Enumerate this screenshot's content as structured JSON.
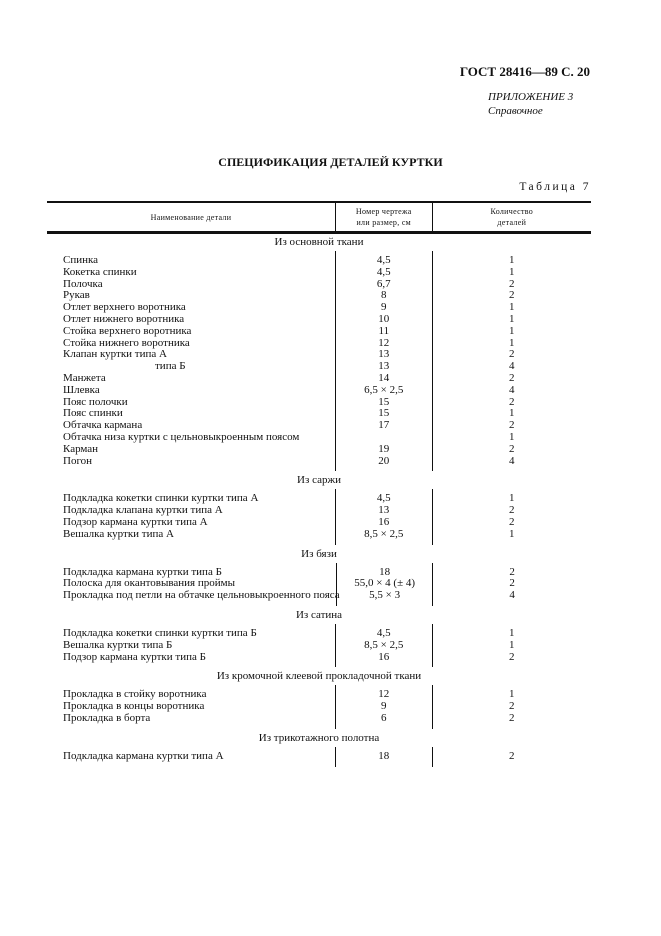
{
  "header": {
    "standard": "ГОСТ 28416—89 С. 20",
    "appendix": "ПРИЛОЖЕНИЕ 3",
    "appendix_note": "Справочное"
  },
  "title": "СПЕЦИФИКАЦИЯ ДЕТАЛЕЙ КУРТКИ",
  "table_label": "Таблица 7",
  "columns": {
    "name": "Наименование детали",
    "number_line1": "Номер чертежа",
    "number_line2": "или размер, см",
    "qty_line1": "Количество",
    "qty_line2": "деталей"
  },
  "sections": [
    {
      "heading": "Из основной ткани",
      "rows": [
        {
          "name": "Спинка",
          "number": "4,5",
          "qty": "1"
        },
        {
          "name": "Кокетка спинки",
          "number": "4,5",
          "qty": "1"
        },
        {
          "name": "Полочка",
          "number": "6,7",
          "qty": "2"
        },
        {
          "name": "Рукав",
          "number": "8",
          "qty": "2"
        },
        {
          "name": "Отлет верхнего воротника",
          "number": "9",
          "qty": "1"
        },
        {
          "name": "Отлет нижнего воротника",
          "number": "10",
          "qty": "1"
        },
        {
          "name": "Стойка верхнего воротника",
          "number": "11",
          "qty": "1"
        },
        {
          "name": "Стойка нижнего воротника",
          "number": "12",
          "qty": "1"
        },
        {
          "name": "Клапан куртки типа А",
          "number": "13",
          "qty": "2"
        },
        {
          "name": "типа Б",
          "number": "13",
          "qty": "4",
          "indent": true
        },
        {
          "name": "Манжета",
          "number": "14",
          "qty": "2"
        },
        {
          "name": "Шлевка",
          "number": "6,5 × 2,5",
          "qty": "4"
        },
        {
          "name": "Пояс полочки",
          "number": "15",
          "qty": "2"
        },
        {
          "name": "Пояс спинки",
          "number": "15",
          "qty": "1"
        },
        {
          "name": "Обтачка кармана",
          "number": "17",
          "qty": "2"
        },
        {
          "name": "Обтачка низа куртки с цельновыкроенным поясом",
          "number": "",
          "qty": "1"
        },
        {
          "name": "Карман",
          "number": "19",
          "qty": "2"
        },
        {
          "name": "Погон",
          "number": "20",
          "qty": "4"
        }
      ]
    },
    {
      "heading": "Из саржи",
      "rows": [
        {
          "name": "Подкладка кокетки спинки куртки типа А",
          "number": "4,5",
          "qty": "1"
        },
        {
          "name": "Подкладка клапана куртки типа А",
          "number": "13",
          "qty": "2"
        },
        {
          "name": "Подзор кармана куртки типа А",
          "number": "16",
          "qty": "2"
        },
        {
          "name": "Вешалка куртки типа А",
          "number": "8,5 × 2,5",
          "qty": "1"
        }
      ]
    },
    {
      "heading": "Из бязи",
      "rows": [
        {
          "name": "Подкладка кармана куртки типа Б",
          "number": "18",
          "qty": "2"
        },
        {
          "name": "Полоска для окантовывания проймы",
          "number": "55,0 × 4 (± 4)",
          "qty": "2"
        },
        {
          "name": "Прокладка под петли на обтачке цельновыкроенного пояса",
          "number": "5,5 × 3",
          "qty": "4"
        }
      ]
    },
    {
      "heading": "Из сатина",
      "rows": [
        {
          "name": "Подкладка кокетки спинки куртки типа Б",
          "number": "4,5",
          "qty": "1"
        },
        {
          "name": "Вешалка куртки типа Б",
          "number": "8,5 × 2,5",
          "qty": "1"
        },
        {
          "name": "Подзор кармана куртки типа Б",
          "number": "16",
          "qty": "2"
        }
      ]
    },
    {
      "heading": "Из кромочной клеевой прокладочной ткани",
      "rows": [
        {
          "name": "Прокладка в стойку воротника",
          "number": "12",
          "qty": "1"
        },
        {
          "name": "Прокладка в концы воротника",
          "number": "9",
          "qty": "2"
        },
        {
          "name": "Прокладка в борта",
          "number": "6",
          "qty": "2"
        }
      ]
    },
    {
      "heading": "Из трикотажного полотна",
      "rows": [
        {
          "name": "Подкладка кармана куртки типа А",
          "number": "18",
          "qty": "2"
        }
      ]
    }
  ]
}
